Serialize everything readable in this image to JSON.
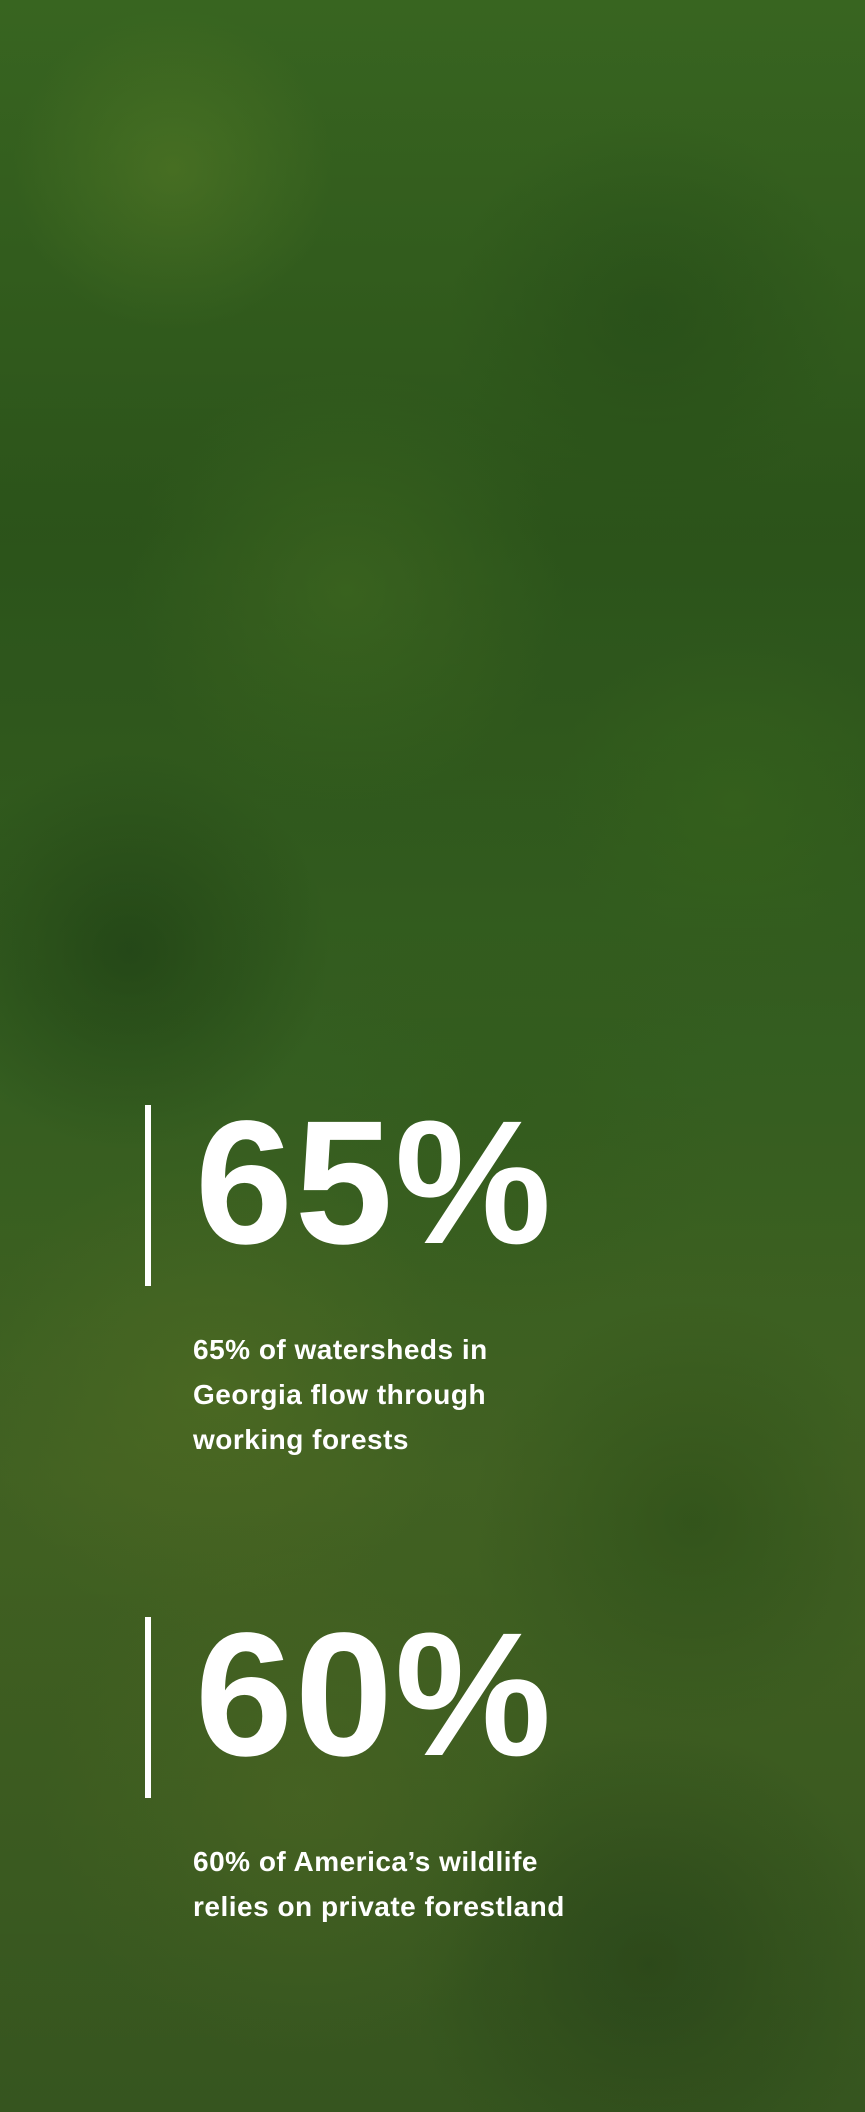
{
  "stats": [
    {
      "number": "65%",
      "description": "65% of watersheds in Georgia flow through working forests"
    },
    {
      "number": "60%",
      "description": "60% of America’s wildlife relies on private forestland"
    }
  ]
}
